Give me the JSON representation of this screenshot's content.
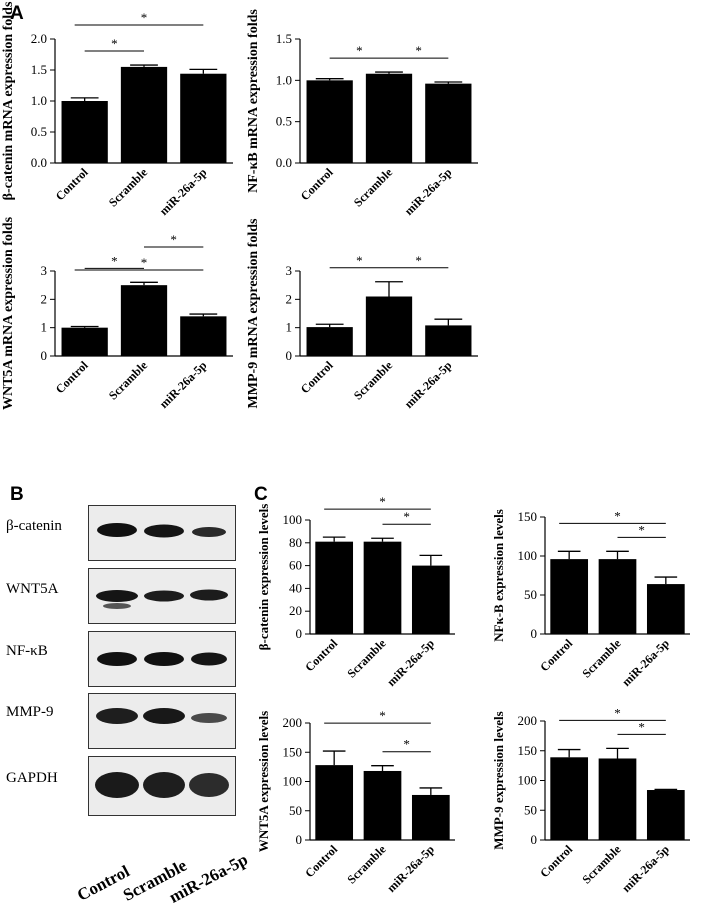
{
  "panel_labels": {
    "a": "A",
    "b": "B",
    "c": "C"
  },
  "sig_marker": "*",
  "blot": {
    "rows": [
      "β-catenin",
      "WNT5A",
      "NF-κB",
      "MMP-9",
      "GAPDH"
    ],
    "lanes": [
      "Control",
      "Scramble",
      "miR-26a-5p"
    ]
  },
  "colors": {
    "bar": "#000000",
    "axis": "#000000",
    "background": "#ffffff"
  },
  "chart_data": [
    {
      "panel": "A",
      "type": "bar",
      "ylabel": "β-catenin mRNA expression folds",
      "categories": [
        "Control",
        "Scramble",
        "miR-26a-5p"
      ],
      "values": [
        1.0,
        1.55,
        1.44
      ],
      "errors": [
        0.05,
        0.03,
        0.07
      ],
      "ylim": [
        0,
        2.0
      ],
      "yticks": [
        0,
        0.5,
        1.0,
        1.5,
        2.0
      ],
      "tick_labels": [
        "0.0",
        "0.5",
        "1.0",
        "1.5",
        "2.0"
      ],
      "significance": [
        {
          "from": 0,
          "to": 1,
          "label": "*"
        },
        {
          "from": 0,
          "to": 2,
          "label": "*"
        }
      ]
    },
    {
      "panel": "A",
      "type": "bar",
      "ylabel": "NF-κB mRNA expression folds",
      "categories": [
        "Control",
        "Scramble",
        "miR-26a-5p"
      ],
      "values": [
        1.0,
        1.08,
        0.96
      ],
      "errors": [
        0.02,
        0.02,
        0.02
      ],
      "ylim": [
        0,
        1.5
      ],
      "yticks": [
        0,
        0.5,
        1.0,
        1.5
      ],
      "tick_labels": [
        "0.0",
        "0.5",
        "1.0",
        "1.5"
      ],
      "significance": [
        {
          "from": 0,
          "to": 1,
          "label": "*"
        },
        {
          "from": 1,
          "to": 2,
          "label": "*"
        }
      ]
    },
    {
      "panel": "A",
      "type": "bar",
      "ylabel": "WNT5A mRNA expression folds",
      "categories": [
        "Control",
        "Scramble",
        "miR-26a-5p"
      ],
      "values": [
        1.0,
        2.5,
        1.4
      ],
      "errors": [
        0.04,
        0.1,
        0.08
      ],
      "ylim": [
        0,
        3
      ],
      "yticks": [
        0,
        1,
        2,
        3
      ],
      "tick_labels": [
        "0",
        "1",
        "2",
        "3"
      ],
      "significance": [
        {
          "from": 0,
          "to": 1,
          "label": "*"
        },
        {
          "from": 0,
          "to": 2,
          "label": "*"
        },
        {
          "from": 1,
          "to": 2,
          "label": "*"
        }
      ]
    },
    {
      "panel": "A",
      "type": "bar",
      "ylabel": "MMP-9 mRNA expression folds",
      "categories": [
        "Control",
        "Scramble",
        "miR-26a-5p"
      ],
      "values": [
        1.02,
        2.1,
        1.08
      ],
      "errors": [
        0.1,
        0.52,
        0.22
      ],
      "ylim": [
        0,
        3
      ],
      "yticks": [
        0,
        1,
        2,
        3
      ],
      "tick_labels": [
        "0",
        "1",
        "2",
        "3"
      ],
      "significance": [
        {
          "from": 0,
          "to": 1,
          "label": "*"
        },
        {
          "from": 1,
          "to": 2,
          "label": "*"
        }
      ]
    },
    {
      "panel": "C",
      "type": "bar",
      "ylabel": "β-catenin expression levels",
      "categories": [
        "Control",
        "Scramble",
        "miR-26a-5p"
      ],
      "values": [
        81,
        81,
        60
      ],
      "errors": [
        4,
        3,
        9
      ],
      "ylim": [
        0,
        100
      ],
      "yticks": [
        0,
        20,
        40,
        60,
        80,
        100
      ],
      "tick_labels": [
        "0",
        "20",
        "40",
        "60",
        "80",
        "100"
      ],
      "significance": [
        {
          "from": 0,
          "to": 2,
          "label": "*"
        },
        {
          "from": 1,
          "to": 2,
          "label": "*"
        }
      ]
    },
    {
      "panel": "C",
      "type": "bar",
      "ylabel": "NFκ-B expression levels",
      "categories": [
        "Control",
        "Scramble",
        "miR-26a-5p"
      ],
      "values": [
        96,
        96,
        64
      ],
      "errors": [
        10,
        10,
        9
      ],
      "ylim": [
        0,
        150
      ],
      "yticks": [
        0,
        50,
        100,
        150
      ],
      "tick_labels": [
        "0",
        "50",
        "100",
        "150"
      ],
      "significance": [
        {
          "from": 0,
          "to": 2,
          "label": "*"
        },
        {
          "from": 1,
          "to": 2,
          "label": "*"
        }
      ]
    },
    {
      "panel": "C",
      "type": "bar",
      "ylabel": "WNT5A expression levels",
      "categories": [
        "Control",
        "Scramble",
        "miR-26a-5p"
      ],
      "values": [
        128,
        118,
        77
      ],
      "errors": [
        24,
        9,
        12
      ],
      "ylim": [
        0,
        200
      ],
      "yticks": [
        0,
        50,
        100,
        150,
        200
      ],
      "tick_labels": [
        "0",
        "50",
        "100",
        "150",
        "200"
      ],
      "significance": [
        {
          "from": 0,
          "to": 2,
          "label": "*"
        },
        {
          "from": 1,
          "to": 2,
          "label": "*"
        }
      ]
    },
    {
      "panel": "C",
      "type": "bar",
      "ylabel": "MMP-9 expression levels",
      "categories": [
        "Control",
        "Scramble",
        "miR-26a-5p"
      ],
      "values": [
        139,
        137,
        84
      ],
      "errors": [
        13,
        17,
        1
      ],
      "ylim": [
        0,
        200
      ],
      "yticks": [
        0,
        50,
        100,
        150,
        200
      ],
      "tick_labels": [
        "0",
        "50",
        "100",
        "150",
        "200"
      ],
      "significance": [
        {
          "from": 0,
          "to": 2,
          "label": "*"
        },
        {
          "from": 1,
          "to": 2,
          "label": "*"
        }
      ]
    }
  ]
}
